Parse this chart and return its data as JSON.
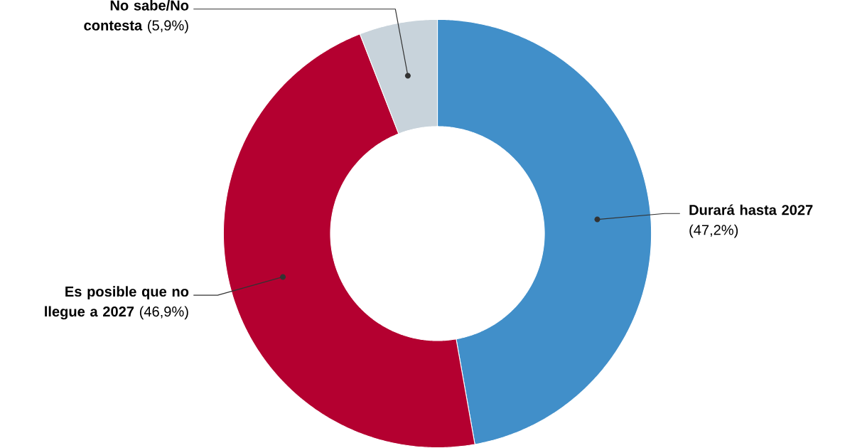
{
  "chart_data": {
    "type": "donut",
    "categories": [
      "Durará hasta 2027",
      "Es posible que no llegue a 2027",
      "No sabe/No contesta"
    ],
    "values": [
      47.2,
      46.9,
      5.9
    ],
    "value_labels": [
      "(47,2%)",
      "(46,9%)",
      "(5,9%)"
    ],
    "colors": [
      "#418fc9",
      "#b40030",
      "#c8d3db"
    ]
  }
}
